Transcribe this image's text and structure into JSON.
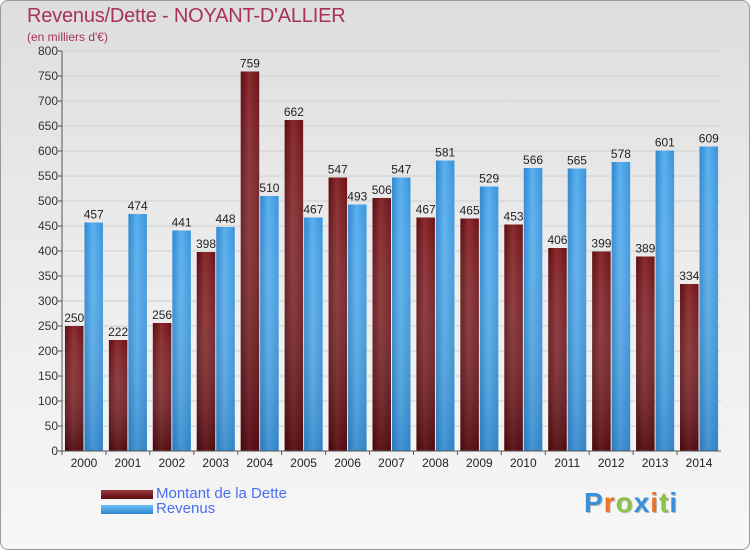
{
  "title": "Revenus/Dette - NOYANT-D'ALLIER",
  "subtitle": "(en milliers d'€)",
  "colors": {
    "dette": "#7a1a1e",
    "revenus": "#3d9fe4",
    "title": "#a8325a",
    "legend_text": "#4a6ef0"
  },
  "legend": {
    "dette": "Montant de la Dette",
    "revenus": "Revenus"
  },
  "logo": {
    "letters": [
      "P",
      "r",
      "o",
      "x",
      "i",
      "t",
      "i"
    ],
    "colors": [
      "#3b8fd6",
      "#e8742a",
      "#8bc34a",
      "#3b8fd6",
      "#e8742a",
      "#8bc34a",
      "#3b8fd6"
    ]
  },
  "chart_data": {
    "type": "bar",
    "title": "Revenus/Dette - NOYANT-D'ALLIER",
    "ylabel": "(en milliers d'€)",
    "xlabel": "",
    "categories": [
      "2000",
      "2001",
      "2002",
      "2003",
      "2004",
      "2005",
      "2006",
      "2007",
      "2008",
      "2009",
      "2010",
      "2011",
      "2012",
      "2013",
      "2014"
    ],
    "series": [
      {
        "name": "Montant de la Dette",
        "values": [
          250,
          222,
          256,
          398,
          759,
          662,
          547,
          506,
          467,
          465,
          453,
          406,
          399,
          389,
          334
        ]
      },
      {
        "name": "Revenus",
        "values": [
          457,
          474,
          441,
          448,
          510,
          467,
          493,
          547,
          581,
          529,
          566,
          565,
          578,
          601,
          609
        ]
      }
    ],
    "ylim": [
      0,
      800
    ],
    "ytick_step": 50,
    "grid": true,
    "legend_position": "bottom-left"
  }
}
